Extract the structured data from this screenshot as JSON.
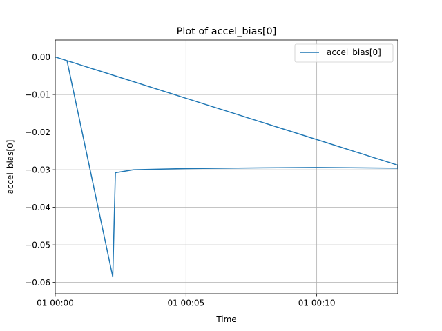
{
  "chart_data": {
    "type": "line",
    "title": "Plot of accel_bias[0]",
    "xlabel": "Time",
    "ylabel": "accel_bias[0]",
    "x_unit": "minutes",
    "xlim": [
      0,
      13.1
    ],
    "ylim": [
      -0.063,
      0.0045
    ],
    "x_tick_values": [
      0,
      5,
      10
    ],
    "x_tick_labels": [
      "01 00:00",
      "01 00:05",
      "01 00:10"
    ],
    "y_ticks": [
      0.0,
      -0.01,
      -0.02,
      -0.03,
      -0.04,
      -0.05,
      -0.06
    ],
    "y_tick_labels": [
      "0.00",
      "−0.01",
      "−0.02",
      "−0.03",
      "−0.04",
      "−0.05",
      "−0.06"
    ],
    "grid": true,
    "legend": {
      "position": "top-right",
      "entries": [
        "accel_bias[0]"
      ]
    },
    "series": [
      {
        "name": "accel_bias[0]",
        "color": "#1f77b4",
        "x": [
          0,
          13.1,
          13.1,
          10.0,
          8.0,
          5.0,
          3.0,
          2.3,
          2.2,
          0.45
        ],
        "y": [
          0.0,
          -0.0288,
          -0.0296,
          -0.0294,
          -0.0295,
          -0.0297,
          -0.03,
          -0.0308,
          -0.0585,
          -0.001
        ]
      }
    ]
  }
}
